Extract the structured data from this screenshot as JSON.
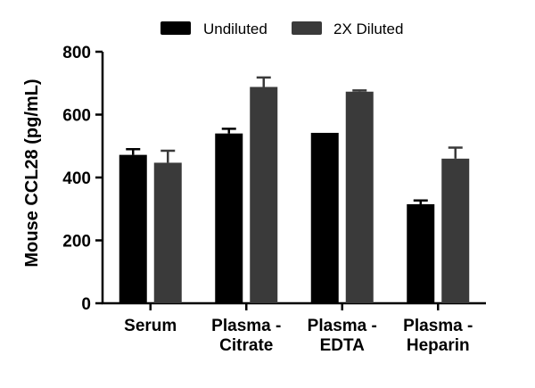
{
  "chart_data": {
    "type": "bar",
    "title": "",
    "xlabel": "",
    "ylabel": "Mouse CCL28 (pg/mL)",
    "ylim": [
      0,
      800
    ],
    "yticks": [
      0,
      200,
      400,
      600,
      800
    ],
    "grid": false,
    "legend_position": "top",
    "categories": [
      [
        "Serum"
      ],
      [
        "Plasma -",
        "Citrate"
      ],
      [
        "Plasma -",
        "EDTA"
      ],
      [
        "Plasma -",
        "Heparin"
      ]
    ],
    "series": [
      {
        "name": "Undiluted",
        "color": "#000000",
        "values": [
          472,
          540,
          542,
          315
        ],
        "errors": [
          18,
          15,
          0,
          12
        ]
      },
      {
        "name": "2X Diluted",
        "color": "#3a3a3a",
        "values": [
          447,
          688,
          673,
          460
        ],
        "errors": [
          38,
          30,
          4,
          35
        ]
      }
    ]
  }
}
